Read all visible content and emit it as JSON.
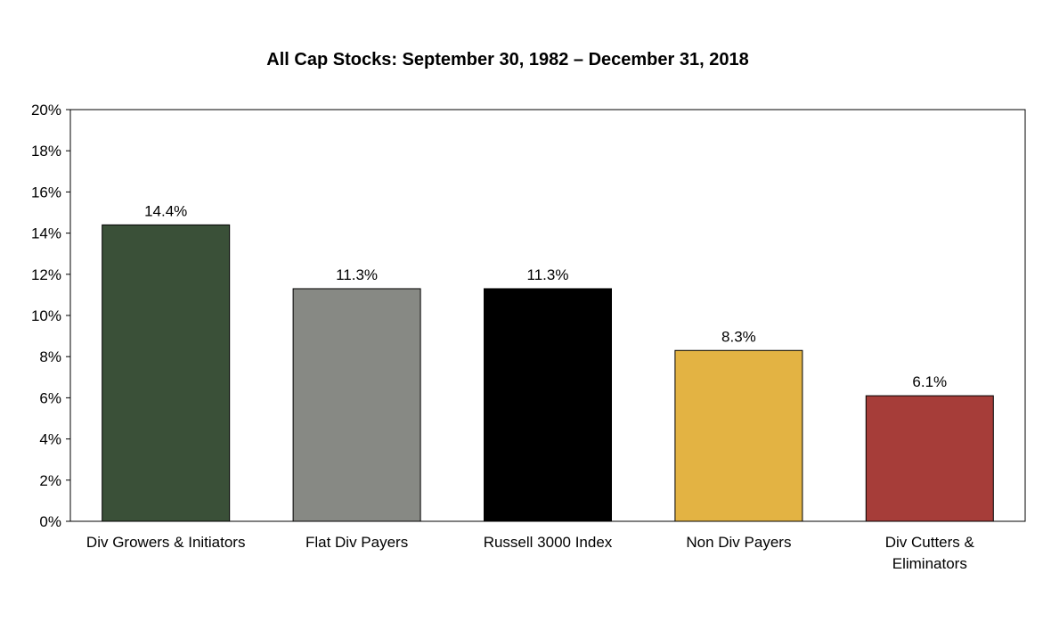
{
  "chart_data": {
    "type": "bar",
    "title": "All Cap Stocks:  September 30, 1982 – December 31, 2018",
    "xlabel": "",
    "ylabel": "",
    "ylim": [
      0,
      20
    ],
    "y_ticks": [
      0,
      2,
      4,
      6,
      8,
      10,
      12,
      14,
      16,
      18,
      20
    ],
    "y_tick_labels": [
      "0%",
      "2%",
      "4%",
      "6%",
      "8%",
      "10%",
      "12%",
      "14%",
      "16%",
      "18%",
      "20%"
    ],
    "grid": false,
    "legend": "none",
    "categories": [
      "Div Growers & Initiators",
      "Flat Div Payers",
      "Russell 3000 Index",
      "Non Div Payers",
      "Div Cutters & Eliminators"
    ],
    "category_label_lines": [
      [
        "Div Growers & Initiators"
      ],
      [
        "Flat Div Payers"
      ],
      [
        "Russell 3000 Index"
      ],
      [
        "Non Div Payers"
      ],
      [
        "Div Cutters &",
        "Eliminators"
      ]
    ],
    "values": [
      14.4,
      11.3,
      11.3,
      8.3,
      6.1
    ],
    "data_labels": [
      "14.4%",
      "11.3%",
      "11.3%",
      "8.3%",
      "6.1%"
    ],
    "bar_colors": [
      "#3a5038",
      "#878984",
      "#000000",
      "#e3b343",
      "#a63d39"
    ]
  }
}
